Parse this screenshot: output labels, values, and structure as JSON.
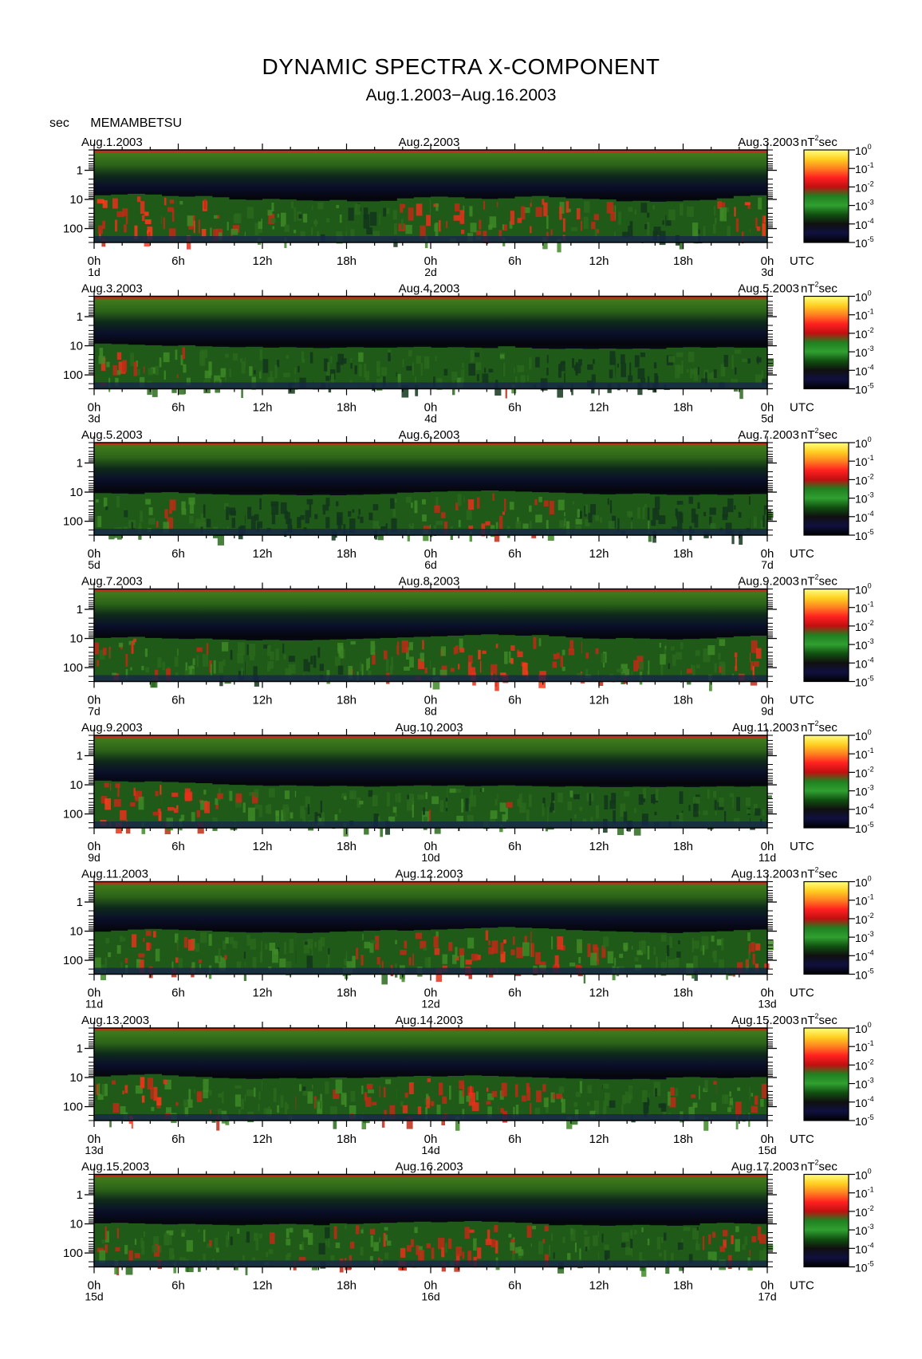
{
  "header": {
    "title": "DYNAMIC SPECTRA X-COMPONENT",
    "subtitle": "Aug.1.2003−Aug.16.2003",
    "yunit": "sec",
    "station": "MEMAMBETSU"
  },
  "colorbar": {
    "unit_base": "nT",
    "unit_exp": "2",
    "unit_tail": "sec",
    "labels": [
      "0",
      "-1",
      "-2",
      "-3",
      "-4",
      "-5"
    ],
    "label_base": "10",
    "colors": [
      "#ffff80",
      "#ffd020",
      "#ff8020",
      "#ff2020",
      "#c01010",
      "#208020",
      "#30a030",
      "#105010",
      "#101010",
      "#101040",
      "#000000"
    ]
  },
  "x_axis": {
    "ticks": [
      "0h",
      "6h",
      "12h",
      "18h",
      "0h",
      "6h",
      "12h",
      "18h",
      "0h"
    ],
    "utc": "UTC"
  },
  "y_axis": {
    "ticks": [
      "1",
      "10",
      "100"
    ],
    "range_sec": [
      0.2,
      300
    ],
    "scale": "log"
  },
  "panels": [
    {
      "date_left": "Aug.1.2003",
      "date_mid": "Aug.2.2003",
      "date_right": "Aug.3.2003",
      "days": [
        "1d",
        "2d",
        "3d"
      ],
      "activity": [
        0.85,
        0.9,
        0.95,
        0.9,
        0.8,
        0.75,
        0.8,
        0.7,
        0.5,
        0.45,
        0.55,
        0.5,
        0.4,
        0.35,
        0.45,
        0.3,
        0.3,
        0.35,
        0.6,
        0.7,
        0.75,
        0.7,
        0.6,
        0.55,
        0.6,
        0.75,
        0.8,
        0.7,
        0.6,
        0.55,
        0.5,
        0.3,
        0.35,
        0.25,
        0.3,
        0.4,
        0.45,
        0.6,
        0.8,
        0.85
      ]
    },
    {
      "date_left": "Aug.3.2003",
      "date_mid": "Aug.4.2003",
      "date_right": "Aug.5.2003",
      "days": [
        "3d",
        "4d",
        "5d"
      ],
      "activity": [
        0.7,
        0.65,
        0.6,
        0.55,
        0.5,
        0.55,
        0.45,
        0.4,
        0.35,
        0.4,
        0.3,
        0.35,
        0.3,
        0.25,
        0.3,
        0.35,
        0.3,
        0.3,
        0.35,
        0.4,
        0.3,
        0.35,
        0.3,
        0.25,
        0.45,
        0.3,
        0.2,
        0.15,
        0.2,
        0.15,
        0.2,
        0.15,
        0.2,
        0.15,
        0.3,
        0.35,
        0.3,
        0.35,
        0.3,
        0.3
      ]
    },
    {
      "date_left": "Aug.5.2003",
      "date_mid": "Aug.6.2003",
      "date_right": "Aug.7.2003",
      "days": [
        "5d",
        "6d",
        "7d"
      ],
      "activity": [
        0.4,
        0.35,
        0.3,
        0.45,
        0.5,
        0.4,
        0.3,
        0.25,
        0.2,
        0.2,
        0.25,
        0.2,
        0.15,
        0.2,
        0.15,
        0.2,
        0.25,
        0.3,
        0.45,
        0.5,
        0.55,
        0.6,
        0.6,
        0.65,
        0.6,
        0.55,
        0.5,
        0.45,
        0.4,
        0.3,
        0.25,
        0.3,
        0.35,
        0.25,
        0.2,
        0.2,
        0.25,
        0.2,
        0.25,
        0.3
      ]
    },
    {
      "date_left": "Aug.7.2003",
      "date_mid": "Aug.8.2003",
      "date_right": "Aug.9.2003",
      "days": [
        "7d",
        "8d",
        "9d"
      ],
      "activity": [
        0.55,
        0.6,
        0.65,
        0.55,
        0.5,
        0.45,
        0.5,
        0.4,
        0.35,
        0.3,
        0.35,
        0.3,
        0.3,
        0.35,
        0.4,
        0.45,
        0.5,
        0.55,
        0.6,
        0.65,
        0.7,
        0.75,
        0.8,
        0.85,
        0.8,
        0.75,
        0.8,
        0.7,
        0.6,
        0.5,
        0.45,
        0.55,
        0.5,
        0.45,
        0.4,
        0.45,
        0.5,
        0.6,
        0.7,
        0.75
      ]
    },
    {
      "date_left": "Aug.9.2003",
      "date_mid": "Aug.10.2003",
      "date_right": "Aug.11.2003",
      "days": [
        "9d",
        "10d",
        "11d"
      ],
      "activity": [
        0.85,
        0.8,
        0.75,
        0.8,
        0.75,
        0.7,
        0.65,
        0.55,
        0.5,
        0.45,
        0.4,
        0.45,
        0.4,
        0.35,
        0.4,
        0.35,
        0.3,
        0.35,
        0.4,
        0.45,
        0.4,
        0.45,
        0.35,
        0.4,
        0.45,
        0.4,
        0.35,
        0.3,
        0.35,
        0.3,
        0.25,
        0.25,
        0.3,
        0.25,
        0.3,
        0.25,
        0.3,
        0.35,
        0.3,
        0.35
      ]
    },
    {
      "date_left": "Aug.11.2003",
      "date_mid": "Aug.12.2003",
      "date_right": "Aug.13.2003",
      "days": [
        "11d",
        "12d",
        "13d"
      ],
      "activity": [
        0.45,
        0.55,
        0.65,
        0.7,
        0.65,
        0.6,
        0.55,
        0.45,
        0.4,
        0.35,
        0.4,
        0.35,
        0.3,
        0.35,
        0.45,
        0.5,
        0.55,
        0.6,
        0.55,
        0.6,
        0.65,
        0.7,
        0.75,
        0.8,
        0.85,
        0.8,
        0.75,
        0.7,
        0.6,
        0.55,
        0.5,
        0.45,
        0.4,
        0.35,
        0.3,
        0.4,
        0.45,
        0.5,
        0.6,
        0.65
      ]
    },
    {
      "date_left": "Aug.13.2003",
      "date_mid": "Aug.14.2003",
      "date_right": "Aug.15.2003",
      "days": [
        "13d",
        "14d",
        "15d"
      ],
      "activity": [
        0.6,
        0.7,
        0.75,
        0.8,
        0.7,
        0.6,
        0.55,
        0.45,
        0.4,
        0.35,
        0.4,
        0.45,
        0.4,
        0.45,
        0.5,
        0.45,
        0.5,
        0.55,
        0.6,
        0.65,
        0.6,
        0.65,
        0.7,
        0.65,
        0.6,
        0.55,
        0.5,
        0.45,
        0.4,
        0.35,
        0.3,
        0.3,
        0.35,
        0.3,
        0.5,
        0.55,
        0.5,
        0.45,
        0.5,
        0.55
      ]
    },
    {
      "date_left": "Aug.15.2003",
      "date_mid": "Aug.16.2003",
      "date_right": "Aug.17.2003",
      "days": [
        "15d",
        "16d",
        "17d"
      ],
      "activity": [
        0.55,
        0.6,
        0.55,
        0.5,
        0.45,
        0.5,
        0.45,
        0.4,
        0.35,
        0.4,
        0.45,
        0.5,
        0.45,
        0.35,
        0.55,
        0.5,
        0.55,
        0.6,
        0.65,
        0.7,
        0.65,
        0.7,
        0.75,
        0.7,
        0.65,
        0.6,
        0.5,
        0.35,
        0.4,
        0.35,
        0.3,
        0.35,
        0.4,
        0.35,
        0.3,
        0.35,
        0.55,
        0.6,
        0.55,
        0.5
      ]
    }
  ],
  "chart_data": {
    "type": "heatmap",
    "title": "DYNAMIC SPECTRA X-COMPONENT",
    "subtitle": "Aug.1.2003−Aug.16.2003",
    "x": "time (UTC hours, 2 days per panel)",
    "y": "period (sec, log scale)",
    "ylim": [
      0.2,
      300
    ],
    "colorbar_range": [
      "10^-5",
      "10^0"
    ],
    "colorbar_unit": "nT^2 sec",
    "panel_count": 8
  }
}
